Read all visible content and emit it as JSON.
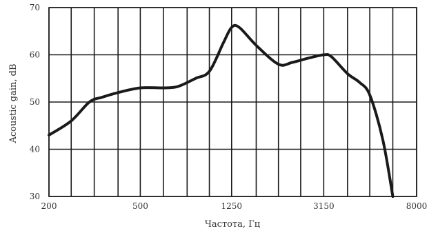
{
  "chart_data": {
    "type": "line",
    "title": "",
    "xlabel": "Частота, Гц",
    "ylabel": "Acoustic gain, dB",
    "x_scale": "log",
    "xlim": [
      200,
      8000
    ],
    "ylim": [
      30,
      70
    ],
    "grid": true,
    "x_ticks": [
      {
        "value": 200,
        "label": "200"
      },
      {
        "value": 500,
        "label": "500"
      },
      {
        "value": 1250,
        "label": "1250"
      },
      {
        "value": 3150,
        "label": "3150"
      },
      {
        "value": 8000,
        "label": "8000"
      }
    ],
    "y_ticks": [
      {
        "value": 30,
        "label": "30"
      },
      {
        "value": 40,
        "label": "40"
      },
      {
        "value": 50,
        "label": "50"
      },
      {
        "value": 60,
        "label": "60"
      },
      {
        "value": 70,
        "label": "70"
      }
    ],
    "x_grid_values": [
      200,
      250,
      315,
      400,
      500,
      630,
      800,
      1000,
      1250,
      1600,
      2000,
      2500,
      3150,
      4000,
      5000,
      6300,
      8000
    ],
    "series": [
      {
        "color": "#1a1a1a",
        "points": [
          [
            200,
            43
          ],
          [
            250,
            46
          ],
          [
            300,
            50
          ],
          [
            340,
            51
          ],
          [
            400,
            52
          ],
          [
            500,
            53
          ],
          [
            630,
            53
          ],
          [
            730,
            53.3
          ],
          [
            870,
            55
          ],
          [
            1000,
            56.5
          ],
          [
            1150,
            62.5
          ],
          [
            1250,
            65.8
          ],
          [
            1350,
            65.8
          ],
          [
            1600,
            62
          ],
          [
            2000,
            58
          ],
          [
            2300,
            58.4
          ],
          [
            2700,
            59.3
          ],
          [
            3150,
            60
          ],
          [
            3400,
            59.6
          ],
          [
            4000,
            56
          ],
          [
            4500,
            54.2
          ],
          [
            5000,
            51.5
          ],
          [
            5700,
            42
          ],
          [
            6300,
            30
          ]
        ]
      }
    ]
  }
}
